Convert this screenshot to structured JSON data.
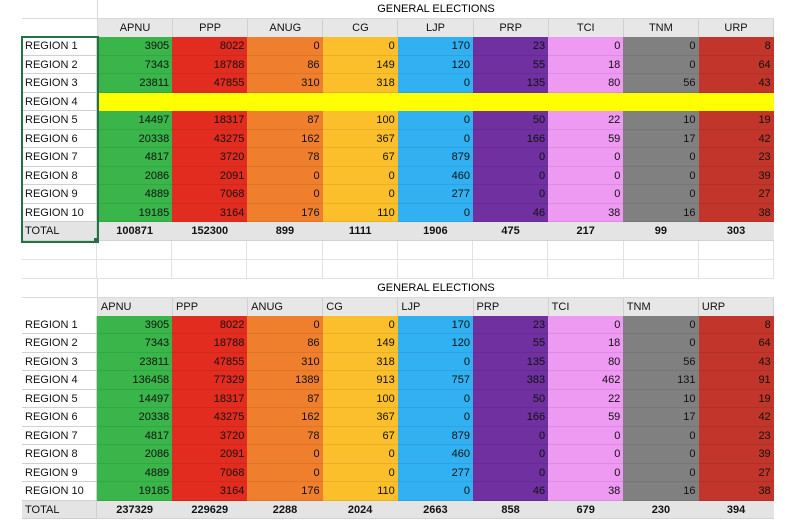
{
  "colors": {
    "APNU": "#3ab54a",
    "PPP": "#e32c20",
    "ANUG": "#ef7f2c",
    "CG": "#fbbf2c",
    "LJP": "#31b1f2",
    "PRP": "#7030a0",
    "TCI": "#ee99f2",
    "TNM": "#808080",
    "URP": "#c1352b",
    "highlight": "#ffff00",
    "selection": "#217346"
  },
  "parties": [
    "APNU",
    "PPP",
    "ANUG",
    "CG",
    "LJP",
    "PRP",
    "TCI",
    "TNM",
    "URP"
  ],
  "table1": {
    "title": "GENERAL ELECTIONS",
    "rows": [
      {
        "label": "REGION 1",
        "values": [
          "3905",
          "8022",
          "0",
          "0",
          "170",
          "23",
          "0",
          "0",
          "8"
        ]
      },
      {
        "label": "REGION 2",
        "values": [
          "7343",
          "18788",
          "86",
          "149",
          "120",
          "55",
          "18",
          "0",
          "64"
        ]
      },
      {
        "label": "REGION 3",
        "values": [
          "23811",
          "47855",
          "310",
          "318",
          "0",
          "135",
          "80",
          "56",
          "43"
        ]
      },
      {
        "label": "REGION 4",
        "highlight": true,
        "values": []
      },
      {
        "label": "REGION 5",
        "values": [
          "14497",
          "18317",
          "87",
          "100",
          "0",
          "50",
          "22",
          "10",
          "19"
        ]
      },
      {
        "label": "REGION 6",
        "values": [
          "20338",
          "43275",
          "162",
          "367",
          "0",
          "166",
          "59",
          "17",
          "42"
        ]
      },
      {
        "label": "REGION 7",
        "values": [
          "4817",
          "3720",
          "78",
          "67",
          "879",
          "0",
          "0",
          "0",
          "23"
        ]
      },
      {
        "label": "REGION 8",
        "values": [
          "2086",
          "2091",
          "0",
          "0",
          "460",
          "0",
          "0",
          "0",
          "39"
        ]
      },
      {
        "label": "REGION 9",
        "values": [
          "4889",
          "7068",
          "0",
          "0",
          "277",
          "0",
          "0",
          "0",
          "27"
        ]
      },
      {
        "label": "REGION 10",
        "values": [
          "19185",
          "3164",
          "176",
          "110",
          "0",
          "46",
          "38",
          "16",
          "38"
        ]
      }
    ],
    "total": {
      "label": "TOTAL",
      "values": [
        "100871",
        "152300",
        "899",
        "1111",
        "1906",
        "475",
        "217",
        "99",
        "303"
      ]
    }
  },
  "table2": {
    "title": "GENERAL ELECTIONS",
    "rows": [
      {
        "label": "REGION 1",
        "values": [
          "3905",
          "8022",
          "0",
          "0",
          "170",
          "23",
          "0",
          "0",
          "8"
        ]
      },
      {
        "label": "REGION 2",
        "values": [
          "7343",
          "18788",
          "86",
          "149",
          "120",
          "55",
          "18",
          "0",
          "64"
        ]
      },
      {
        "label": "REGION 3",
        "values": [
          "23811",
          "47855",
          "310",
          "318",
          "0",
          "135",
          "80",
          "56",
          "43"
        ]
      },
      {
        "label": "REGION 4",
        "values": [
          "136458",
          "77329",
          "1389",
          "913",
          "757",
          "383",
          "462",
          "131",
          "91"
        ]
      },
      {
        "label": "REGION 5",
        "values": [
          "14497",
          "18317",
          "87",
          "100",
          "0",
          "50",
          "22",
          "10",
          "19"
        ]
      },
      {
        "label": "REGION 6",
        "values": [
          "20338",
          "43275",
          "162",
          "367",
          "0",
          "166",
          "59",
          "17",
          "42"
        ]
      },
      {
        "label": "REGION 7",
        "values": [
          "4817",
          "3720",
          "78",
          "67",
          "879",
          "0",
          "0",
          "0",
          "23"
        ]
      },
      {
        "label": "REGION 8",
        "values": [
          "2086",
          "2091",
          "0",
          "0",
          "460",
          "0",
          "0",
          "0",
          "39"
        ]
      },
      {
        "label": "REGION 9",
        "values": [
          "4889",
          "7068",
          "0",
          "0",
          "277",
          "0",
          "0",
          "0",
          "27"
        ]
      },
      {
        "label": "REGION 10",
        "values": [
          "19185",
          "3164",
          "176",
          "110",
          "0",
          "46",
          "38",
          "16",
          "38"
        ]
      }
    ],
    "total": {
      "label": "TOTAL",
      "values": [
        "237329",
        "229629",
        "2288",
        "2024",
        "2663",
        "858",
        "679",
        "230",
        "394"
      ]
    }
  }
}
